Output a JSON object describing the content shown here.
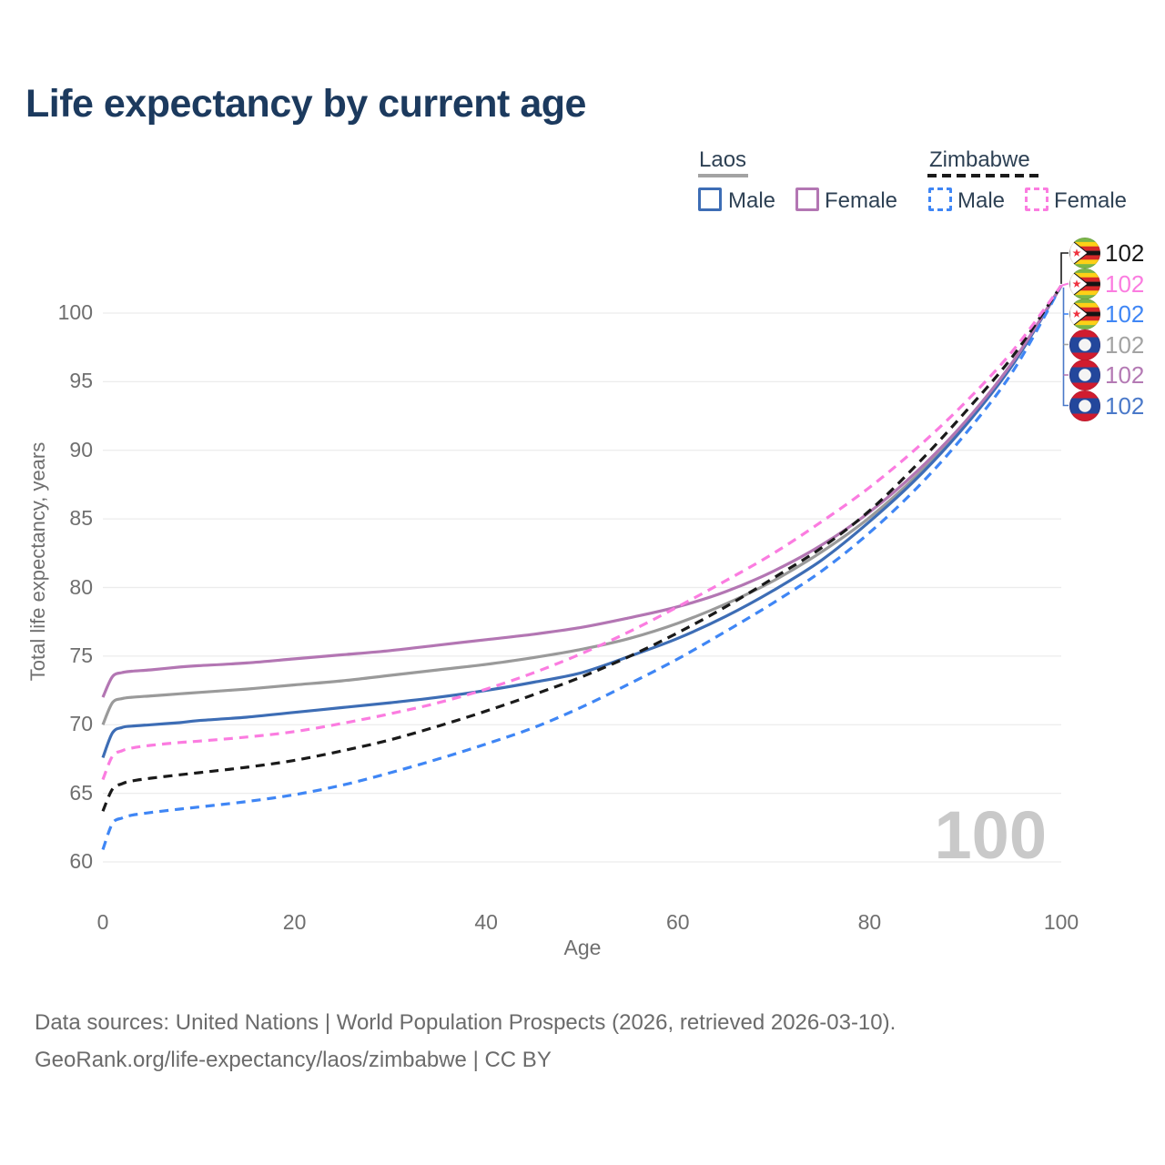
{
  "title": "Life expectancy by current age",
  "watermark": "100",
  "legend": {
    "groups": [
      {
        "country": "Laos",
        "line_style": "solid",
        "underline_color": "#a3a3a3",
        "items": [
          {
            "label": "Male",
            "color": "#3d6db5",
            "dash": false
          },
          {
            "label": "Female",
            "color": "#b376b3",
            "dash": false
          }
        ]
      },
      {
        "country": "Zimbabwe",
        "line_style": "dashed",
        "underline_color": "#1a1a1a",
        "items": [
          {
            "label": "Male",
            "color": "#3f86f5",
            "dash": true
          },
          {
            "label": "Female",
            "color": "#fb7ce0",
            "dash": true
          }
        ]
      }
    ]
  },
  "end_labels": [
    {
      "flag": "zimbabwe",
      "series": "Zimbabwe Total",
      "value": "102",
      "color": "#1a1a1a"
    },
    {
      "flag": "zimbabwe",
      "series": "Zimbabwe Female",
      "value": "102",
      "color": "#fb7ce0"
    },
    {
      "flag": "zimbabwe",
      "series": "Zimbabwe Male",
      "value": "102",
      "color": "#3f86f5"
    },
    {
      "flag": "laos",
      "series": "Laos Total",
      "value": "102",
      "color": "#a3a3a3"
    },
    {
      "flag": "laos",
      "series": "Laos Female",
      "value": "102",
      "color": "#b47ab4"
    },
    {
      "flag": "laos",
      "series": "Laos Male",
      "value": "102",
      "color": "#4a79c9"
    }
  ],
  "flag_colors": {
    "laos": {
      "red": "#d01c2f",
      "blue": "#23479c",
      "disc": "#f4f4f4"
    },
    "zimbabwe": {
      "green": "#7ab648",
      "yellow": "#fdd116",
      "red": "#d62828",
      "black": "#141414",
      "chevron": "#ffffff",
      "star": "#ef3340"
    }
  },
  "footer": {
    "line1": "Data sources: United Nations | World Population Prospects (2026, retrieved 2026-03-10).",
    "line2": "GeoRank.org/life-expectancy/laos/zimbabwe | CC BY"
  },
  "chart_data": {
    "type": "line",
    "title": "Life expectancy by current age",
    "xlabel": "Age",
    "ylabel": "Total life expectancy, years",
    "xlim": [
      0,
      100
    ],
    "ylim": [
      60,
      103
    ],
    "x_ticks": [
      0,
      20,
      40,
      60,
      80,
      100
    ],
    "y_ticks": [
      60,
      65,
      70,
      75,
      80,
      85,
      90,
      95,
      100
    ],
    "grid": "horizontal",
    "legend_position": "top-right",
    "gridline_color": "#ececec",
    "current_age_indicator": 100,
    "ages": [
      0,
      1,
      2,
      3,
      5,
      8,
      10,
      15,
      20,
      25,
      30,
      35,
      40,
      45,
      50,
      55,
      60,
      65,
      70,
      75,
      80,
      85,
      90,
      95,
      100
    ],
    "series": [
      {
        "name": "Laos Total",
        "country": "Laos",
        "sex": "Both",
        "color": "#9a9a9a",
        "dash": false,
        "end_value": 102,
        "values": [
          70,
          71.6,
          71.9,
          72,
          72.1,
          72.25,
          72.35,
          72.6,
          72.9,
          73.2,
          73.6,
          74,
          74.4,
          74.9,
          75.5,
          76.3,
          77.4,
          78.8,
          80.5,
          82.6,
          85.1,
          88.2,
          91.9,
          96.4,
          102
        ]
      },
      {
        "name": "Laos Male",
        "country": "Laos",
        "sex": "Male",
        "color": "#3d6db5",
        "dash": false,
        "end_value": 102,
        "values": [
          67.6,
          69.4,
          69.8,
          69.9,
          70,
          70.15,
          70.3,
          70.55,
          70.9,
          71.25,
          71.6,
          72,
          72.5,
          73.1,
          73.8,
          75,
          76.3,
          77.9,
          79.8,
          82,
          84.8,
          88,
          91.8,
          96.3,
          102
        ]
      },
      {
        "name": "Laos Female",
        "country": "Laos",
        "sex": "Female",
        "color": "#b376b3",
        "dash": false,
        "end_value": 102,
        "values": [
          72,
          73.5,
          73.8,
          73.9,
          74,
          74.2,
          74.3,
          74.5,
          74.8,
          75.1,
          75.4,
          75.8,
          76.2,
          76.6,
          77.1,
          77.8,
          78.6,
          79.7,
          81.2,
          83.1,
          85.5,
          88.5,
          92.1,
          96.5,
          102
        ]
      },
      {
        "name": "Zimbabwe Male",
        "country": "Zimbabwe",
        "sex": "Male",
        "color": "#3f86f5",
        "dash": true,
        "end_value": 102,
        "values": [
          60.9,
          62.8,
          63.2,
          63.4,
          63.6,
          63.85,
          64,
          64.4,
          64.9,
          65.6,
          66.5,
          67.5,
          68.6,
          69.8,
          71.3,
          73,
          74.8,
          76.8,
          78.9,
          81.2,
          84,
          87.3,
          91.2,
          95.8,
          102
        ]
      },
      {
        "name": "Zimbabwe Total",
        "country": "Zimbabwe",
        "sex": "Both",
        "color": "#1a1a1a",
        "dash": true,
        "end_value": 102,
        "values": [
          63.7,
          65.3,
          65.7,
          65.9,
          66.1,
          66.35,
          66.5,
          66.9,
          67.4,
          68.1,
          68.9,
          69.9,
          71,
          72.2,
          73.5,
          75,
          76.7,
          78.6,
          80.7,
          82.9,
          85.6,
          89,
          92.8,
          96.9,
          102
        ]
      },
      {
        "name": "Zimbabwe Female",
        "country": "Zimbabwe",
        "sex": "Female",
        "color": "#fb7ce0",
        "dash": true,
        "end_value": 102,
        "values": [
          66,
          67.7,
          68.1,
          68.3,
          68.5,
          68.7,
          68.8,
          69.1,
          69.5,
          70.1,
          70.8,
          71.6,
          72.6,
          73.8,
          75.2,
          76.8,
          78.6,
          80.5,
          82.5,
          84.8,
          87.3,
          90.2,
          93.5,
          97.3,
          102
        ]
      }
    ]
  }
}
